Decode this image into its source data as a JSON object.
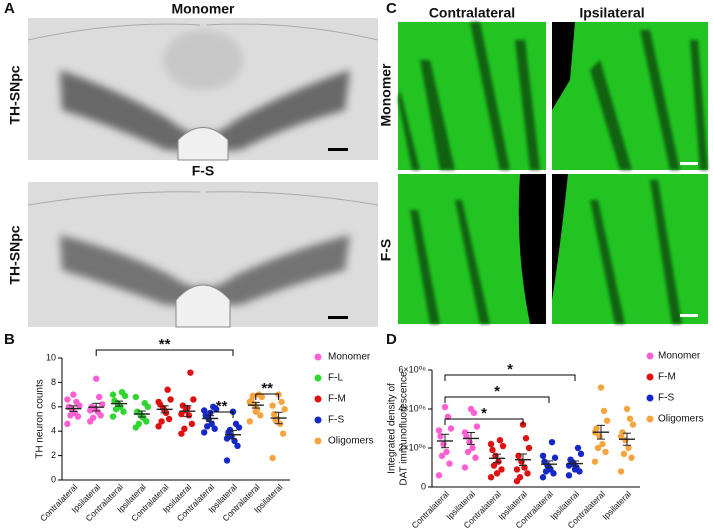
{
  "panels": [
    "A",
    "B",
    "C",
    "D"
  ],
  "panel_a": {
    "row_labels": [
      "Monomer",
      "F-S"
    ],
    "side_labels": [
      "TH-SNpc",
      "TH-SNpc"
    ]
  },
  "panel_c": {
    "column_labels": [
      "Contralateral",
      "Ipsilateral"
    ],
    "row_labels": [
      "Monomer",
      "F-S"
    ]
  },
  "chart_data": [
    {
      "type": "strip",
      "y_label": [
        "TH neuron counts"
      ],
      "categories": [
        "Contralateral",
        "Ipsilateral",
        "Contralateral",
        "Ipsilateral",
        "Contralateral",
        "Ipsilateral",
        "Contralateral",
        "Ipsilateral",
        "Contralateral",
        "Ipsilateral"
      ],
      "ylim": [
        0,
        10
      ],
      "yticks": [
        0,
        2,
        4,
        6,
        8,
        10
      ],
      "annotations": [
        "**",
        "**",
        "**"
      ],
      "series": [
        {
          "name": "Monomer",
          "color": "#ff5fd0",
          "values": [
            [
              4.6,
              5.2,
              5.5,
              5.8,
              6.0,
              6.1,
              6.4,
              7.0,
              5.3,
              6.6
            ],
            [
              4.8,
              5.3,
              5.6,
              5.9,
              6.0,
              6.2,
              6.8,
              8.3,
              5.1,
              5.7
            ]
          ]
        },
        {
          "name": "F-L",
          "color": "#2fd62f",
          "values": [
            [
              5.2,
              5.6,
              6.0,
              6.3,
              6.5,
              6.9,
              7.2,
              6.1,
              5.8,
              7.0
            ],
            [
              4.3,
              4.8,
              5.1,
              5.4,
              5.6,
              6.0,
              6.3,
              5.2,
              4.6,
              6.8
            ]
          ]
        },
        {
          "name": "F-M",
          "color": "#e01010",
          "values": [
            [
              4.4,
              5.0,
              5.5,
              5.9,
              6.2,
              6.6,
              7.4,
              5.7,
              4.8,
              6.4
            ],
            [
              3.8,
              4.6,
              5.3,
              5.7,
              6.1,
              6.6,
              8.8,
              5.9,
              4.2,
              5.4
            ]
          ]
        },
        {
          "name": "F-S",
          "color": "#1428c8",
          "values": [
            [
              3.9,
              4.2,
              4.6,
              5.0,
              5.3,
              5.8,
              6.0,
              5.5,
              4.4,
              5.7
            ],
            [
              1.6,
              2.8,
              3.2,
              3.6,
              3.9,
              4.3,
              4.6,
              5.6,
              4.1,
              3.4
            ]
          ]
        },
        {
          "name": "Oligomers",
          "color": "#f5a540",
          "values": [
            [
              4.8,
              5.3,
              5.8,
              6.2,
              6.5,
              6.8,
              7.0,
              5.6,
              6.9,
              6.4
            ],
            [
              1.8,
              3.8,
              4.6,
              5.0,
              5.4,
              5.8,
              6.4,
              7.0,
              4.9,
              6.1
            ]
          ]
        }
      ]
    },
    {
      "type": "strip",
      "y_label": [
        "Integrated density of",
        "DAT immunofluorescence"
      ],
      "categories": [
        "Contralateral",
        "Ipsilateral",
        "Contralateral",
        "Ipsilateral",
        "Contralateral",
        "Ipsilateral",
        "Contralateral",
        "Ipsilateral"
      ],
      "ylim": [
        0,
        6000000
      ],
      "yticks": [
        0,
        {
          "value": 2000000,
          "label": "2×10⁰⁶"
        },
        {
          "value": 4000000,
          "label": "4×10⁰⁶"
        },
        {
          "value": 6000000,
          "label": "6×10⁰⁶"
        }
      ],
      "annotations": [
        "*",
        "*",
        "*"
      ],
      "series": [
        {
          "name": "Monomer",
          "color": "#ff5fd0",
          "values": [
            [
              600000,
              1200000,
              1800000,
              2200000,
              2600000,
              3000000,
              3600000,
              4100000,
              1600000,
              2900000
            ],
            [
              1000000,
              1500000,
              2000000,
              2300000,
              2600000,
              3100000,
              3800000,
              4000000,
              1800000,
              2800000
            ]
          ]
        },
        {
          "name": "F-M",
          "color": "#e01010",
          "values": [
            [
              500000,
              900000,
              1300000,
              1600000,
              1900000,
              2100000,
              2400000,
              700000,
              1100000,
              2200000
            ],
            [
              300000,
              700000,
              1000000,
              1300000,
              1600000,
              2000000,
              2500000,
              3200000,
              500000,
              900000
            ]
          ]
        },
        {
          "name": "F-S",
          "color": "#1428c8",
          "values": [
            [
              500000,
              700000,
              900000,
              1100000,
              1300000,
              1500000,
              2300000,
              1000000,
              800000,
              1600000
            ],
            [
              600000,
              800000,
              1000000,
              1200000,
              1400000,
              1700000,
              2000000,
              900000,
              1300000,
              1100000
            ]
          ]
        },
        {
          "name": "Oligomers",
          "color": "#f5a540",
          "values": [
            [
              1300000,
              1800000,
              2200000,
              2600000,
              3000000,
              3400000,
              3900000,
              5100000,
              2000000,
              2800000
            ],
            [
              800000,
              1500000,
              2000000,
              2400000,
              2800000,
              3200000,
              3500000,
              4000000,
              1700000,
              2600000
            ]
          ]
        }
      ]
    }
  ]
}
